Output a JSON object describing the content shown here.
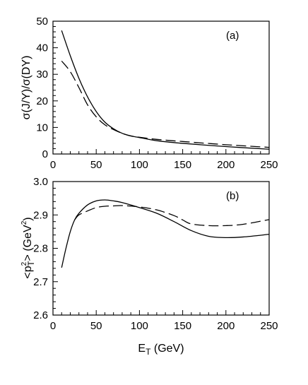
{
  "chart_data": [
    {
      "type": "line",
      "panel_label": "(a)",
      "ylabel": "σ(J/Y)/σ(DY)",
      "xlim": [
        0,
        250
      ],
      "ylim": [
        0,
        50
      ],
      "x_ticks": [
        0,
        50,
        100,
        150,
        200,
        250
      ],
      "y_ticks": [
        0,
        10,
        20,
        30,
        40,
        50
      ],
      "series": [
        {
          "style": "solid",
          "x": [
            10,
            20,
            30,
            40,
            50,
            60,
            70,
            80,
            90,
            100,
            120,
            150,
            200,
            250
          ],
          "y": [
            46.5,
            37,
            28.5,
            21.5,
            16,
            12,
            9.5,
            7.8,
            6.8,
            6.2,
            5.0,
            4.0,
            2.8,
            1.8
          ]
        },
        {
          "style": "dashed",
          "x": [
            10,
            20,
            30,
            40,
            50,
            60,
            70,
            80,
            90,
            100,
            120,
            150,
            200,
            250
          ],
          "y": [
            35,
            31,
            25,
            18.5,
            14,
            11,
            9.2,
            7.8,
            6.8,
            6.3,
            5.5,
            4.7,
            3.5,
            2.5
          ]
        }
      ]
    },
    {
      "type": "line",
      "panel_label": "(b)",
      "ylabel": "<p",
      "ylabel_sub": "T",
      "ylabel_sup": "2",
      "ylabel_rest": "> (GeV",
      "ylabel_unit_sup": "2",
      "ylabel_end": ")",
      "xlabel": "E",
      "xlabel_sub": "T",
      "xlabel_rest": " (GeV)",
      "xlim": [
        0,
        250
      ],
      "ylim": [
        2.6,
        3.0
      ],
      "x_ticks": [
        0,
        50,
        100,
        150,
        200,
        250
      ],
      "y_ticks": [
        2.6,
        2.7,
        2.8,
        2.9,
        3.0
      ],
      "series": [
        {
          "style": "solid",
          "x": [
            10,
            15,
            20,
            25,
            30,
            40,
            50,
            60,
            70,
            80,
            100,
            120,
            140,
            160,
            180,
            200,
            220,
            250
          ],
          "y": [
            2.742,
            2.8,
            2.85,
            2.885,
            2.905,
            2.93,
            2.942,
            2.945,
            2.942,
            2.937,
            2.922,
            2.905,
            2.88,
            2.853,
            2.836,
            2.832,
            2.834,
            2.842
          ]
        },
        {
          "style": "dashed",
          "x": [
            25,
            30,
            40,
            50,
            60,
            70,
            80,
            100,
            120,
            140,
            150,
            160,
            180,
            200,
            220,
            250
          ],
          "y": [
            2.885,
            2.9,
            2.912,
            2.922,
            2.926,
            2.927,
            2.928,
            2.924,
            2.915,
            2.898,
            2.885,
            2.873,
            2.868,
            2.868,
            2.872,
            2.886
          ]
        }
      ]
    }
  ]
}
